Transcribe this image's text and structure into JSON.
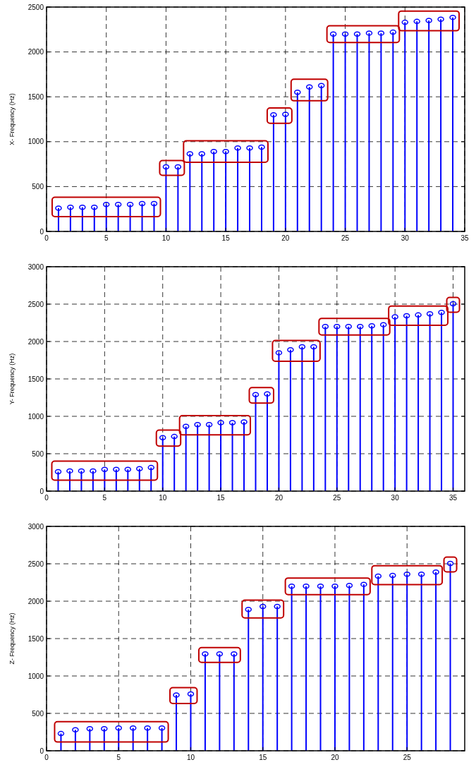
{
  "chart_data": [
    {
      "type": "lollipop",
      "ylabel": "X- Frequency (Hz)",
      "x": [
        1,
        2,
        3,
        4,
        5,
        6,
        7,
        8,
        9,
        10,
        11,
        12,
        13,
        14,
        15,
        16,
        17,
        18,
        19,
        20,
        21,
        22,
        23,
        24,
        25,
        26,
        27,
        28,
        29,
        30,
        31,
        32,
        33,
        34
      ],
      "series": [
        {
          "color": "#0000ff",
          "values": [
            260,
            270,
            270,
            270,
            300,
            300,
            300,
            310,
            310,
            720,
            720,
            865,
            865,
            890,
            890,
            930,
            930,
            940,
            1300,
            1305,
            1550,
            1610,
            1625,
            2200,
            2200,
            2200,
            2210,
            2210,
            2220,
            2330,
            2340,
            2350,
            2365,
            2385
          ]
        }
      ],
      "xlim": [
        0,
        35
      ],
      "xticks": [
        0,
        5,
        10,
        15,
        20,
        25,
        30,
        35
      ],
      "ylim": [
        0,
        2500
      ],
      "yticks": [
        0,
        500,
        1000,
        1500,
        2000,
        2500
      ],
      "grid": true,
      "marker": "circle"
    },
    {
      "type": "lollipop",
      "ylabel": "Y- Frequency (Hz)",
      "x": [
        1,
        2,
        3,
        4,
        5,
        6,
        7,
        8,
        9,
        10,
        11,
        12,
        13,
        14,
        15,
        16,
        17,
        18,
        19,
        20,
        21,
        22,
        23,
        24,
        25,
        26,
        27,
        28,
        29,
        30,
        31,
        32,
        33,
        34,
        35
      ],
      "series": [
        {
          "color": "#0000ff",
          "values": [
            260,
            270,
            270,
            270,
            290,
            290,
            290,
            300,
            315,
            715,
            730,
            865,
            890,
            890,
            915,
            915,
            925,
            1290,
            1300,
            1850,
            1890,
            1930,
            1930,
            2200,
            2200,
            2200,
            2200,
            2210,
            2225,
            2330,
            2345,
            2355,
            2370,
            2390,
            2505
          ]
        }
      ],
      "xlim": [
        0,
        36
      ],
      "xticks": [
        0,
        5,
        10,
        15,
        20,
        25,
        30,
        35
      ],
      "ylim": [
        0,
        3000
      ],
      "yticks": [
        0,
        500,
        1000,
        1500,
        2000,
        2500,
        3000
      ],
      "grid": true,
      "marker": "circle"
    },
    {
      "type": "lollipop",
      "ylabel": "Z- Frequency (Hz)",
      "x": [
        1,
        2,
        3,
        4,
        5,
        6,
        7,
        8,
        9,
        10,
        11,
        12,
        13,
        14,
        15,
        16,
        17,
        18,
        19,
        20,
        21,
        22,
        23,
        24,
        25,
        26,
        27,
        28
      ],
      "series": [
        {
          "color": "#0000ff",
          "values": [
            230,
            280,
            295,
            295,
            305,
            305,
            305,
            305,
            745,
            760,
            1295,
            1295,
            1295,
            1890,
            1930,
            1930,
            2200,
            2200,
            2200,
            2200,
            2210,
            2225,
            2335,
            2345,
            2360,
            2360,
            2390,
            2505
          ]
        }
      ],
      "xlim": [
        0,
        29
      ],
      "xticks": [
        0,
        5,
        10,
        15,
        20,
        25
      ],
      "ylim": [
        0,
        3000
      ],
      "yticks": [
        0,
        500,
        1000,
        1500,
        2000,
        2500,
        3000
      ],
      "grid": true,
      "marker": "circle"
    }
  ]
}
